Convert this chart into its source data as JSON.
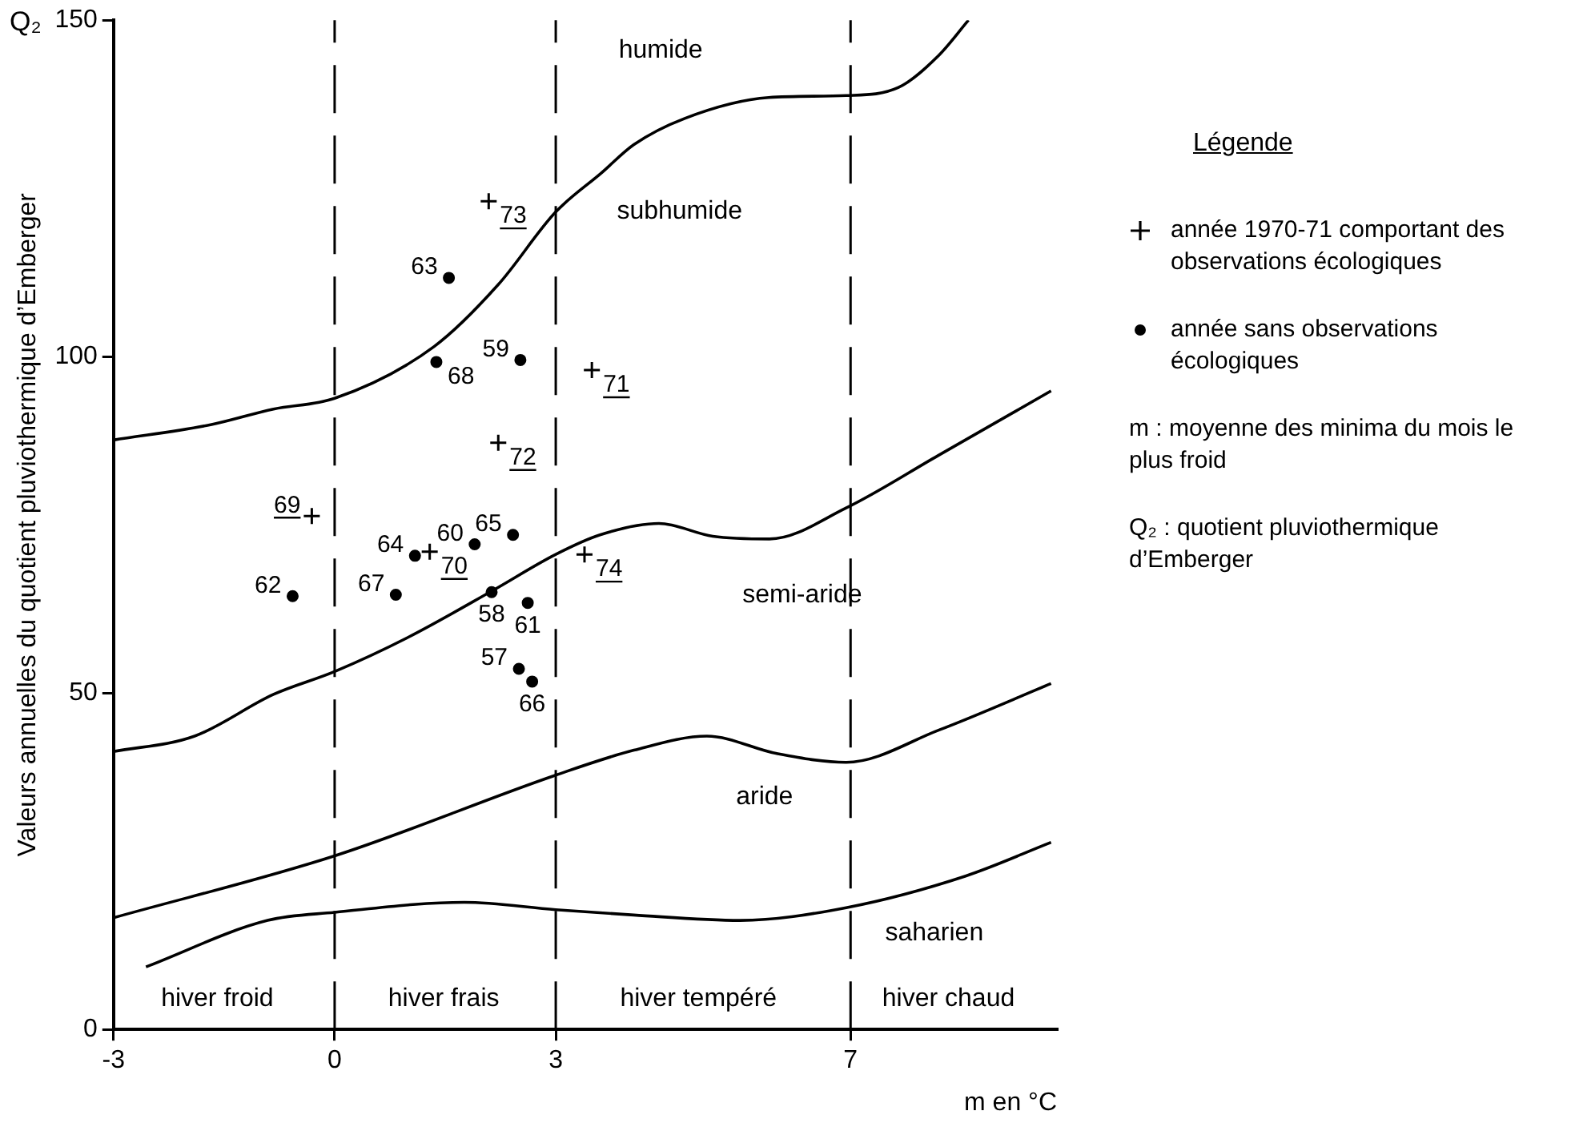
{
  "chart_data": {
    "type": "scatter",
    "ylabel": "Valeurs annuelles du quotient pluviothermique d’Emberger",
    "xlabel": "m en °C",
    "legend_title": "Légende",
    "legend": "right",
    "grid": false,
    "xlim": [
      -3,
      9.8
    ],
    "ylim": [
      0,
      150
    ],
    "xticks": [
      -3,
      0,
      3,
      7
    ],
    "yticks": [
      0,
      50,
      100,
      150
    ],
    "series": [
      {
        "name": "année 1970-71 comportant des observations écologiques",
        "marker": "cross",
        "color": "#000000",
        "x": [
          2.09,
          2.22,
          3.49,
          -0.31,
          1.29,
          3.39
        ],
        "values": [
          123.1,
          87.2,
          98.0,
          76.3,
          71.0,
          70.6
        ]
      },
      {
        "name": "année sans observations écologiques",
        "marker": "circle",
        "color": "#000000",
        "x": [
          1.55,
          1.38,
          2.52,
          1.9,
          2.42,
          1.09,
          -0.57,
          0.83,
          2.13,
          2.62,
          2.5,
          2.68
        ],
        "values": [
          111.7,
          99.2,
          99.5,
          72.1,
          73.5,
          70.4,
          64.4,
          64.6,
          65.0,
          63.4,
          53.6,
          51.7
        ]
      },
      {
        "type": "line",
        "marker": "none",
        "color": "#000000",
        "x": [
          -3,
          -1.67,
          -0.83,
          0,
          1.35,
          2.22,
          3,
          3.62,
          4.06,
          4.75,
          5.89,
          6.94,
          7.65,
          8.19,
          8.6
        ],
        "values": [
          87.6,
          89.9,
          92.2,
          93.8,
          101.5,
          110.7,
          121.5,
          127.3,
          131.5,
          135.4,
          138.5,
          138.8,
          140,
          144.7,
          150
        ]
      },
      {
        "type": "line",
        "marker": "none",
        "color": "#000000",
        "x": [
          -3,
          -1.9,
          -0.83,
          0,
          1,
          2.14,
          3,
          3.6,
          4.4,
          5.13,
          5.9,
          6.94,
          8.19,
          9.72
        ],
        "values": [
          41.3,
          43.6,
          49.8,
          53.2,
          58.3,
          65.2,
          70.6,
          73.5,
          75.2,
          73.3,
          72.9,
          77.5,
          85.3,
          94.9
        ]
      },
      {
        "type": "line",
        "marker": "none",
        "color": "#000000",
        "x": [
          -3,
          0,
          3,
          4.06,
          5.05,
          6.0,
          6.94,
          8.2,
          9.72
        ],
        "values": [
          16.6,
          25.8,
          37.8,
          41.5,
          43.6,
          41.0,
          39.7,
          44.5,
          51.4
        ]
      },
      {
        "type": "line",
        "marker": "none",
        "color": "#000000",
        "x": [
          -2.56,
          -0.91,
          0,
          1.76,
          3,
          4.06,
          5.5,
          6.94,
          8.56,
          9.72
        ],
        "values": [
          9.3,
          16.2,
          17.4,
          18.9,
          17.8,
          17.0,
          16.2,
          18.1,
          22.8,
          27.8
        ]
      }
    ],
    "ref_lines": [
      {
        "axis": "x",
        "value": 0,
        "color": "#000000",
        "line_style": "dashed"
      },
      {
        "axis": "x",
        "value": 3,
        "color": "#000000",
        "line_style": "dashed"
      },
      {
        "axis": "x",
        "value": 7,
        "color": "#000000",
        "line_style": "dashed"
      }
    ],
    "annotations": [
      "Q₂",
      "humide",
      "subhumide",
      "semi-aride",
      "aride",
      "saharien",
      "hiver froid",
      "hiver frais",
      "hiver tempéré",
      "hiver chaud",
      "m : moyenne des minima du mois le plus froid",
      "Q₂ : quotient pluviothermique d’Emberger",
      {
        "text": "73",
        "x": 2.09,
        "y": 123.1
      },
      {
        "text": "72",
        "x": 2.22,
        "y": 87.2
      },
      {
        "text": "71",
        "x": 3.49,
        "y": 98.0
      },
      {
        "text": "69",
        "x": -0.31,
        "y": 76.3
      },
      {
        "text": "70",
        "x": 1.29,
        "y": 71.0
      },
      {
        "text": "74",
        "x": 3.39,
        "y": 70.6
      },
      {
        "text": "63",
        "x": 1.55,
        "y": 111.7
      },
      {
        "text": "68",
        "x": 1.38,
        "y": 99.2
      },
      {
        "text": "59",
        "x": 2.52,
        "y": 99.5
      },
      {
        "text": "60",
        "x": 1.9,
        "y": 72.1
      },
      {
        "text": "65",
        "x": 2.42,
        "y": 73.5
      },
      {
        "text": "64",
        "x": 1.09,
        "y": 70.4
      },
      {
        "text": "62",
        "x": -0.57,
        "y": 64.4
      },
      {
        "text": "67",
        "x": 0.83,
        "y": 64.6
      },
      {
        "text": "58",
        "x": 2.13,
        "y": 65.0
      },
      {
        "text": "61",
        "x": 2.62,
        "y": 63.4
      },
      {
        "text": "57",
        "x": 2.5,
        "y": 53.6
      },
      {
        "text": "66",
        "x": 2.68,
        "y": 51.7
      }
    ]
  }
}
